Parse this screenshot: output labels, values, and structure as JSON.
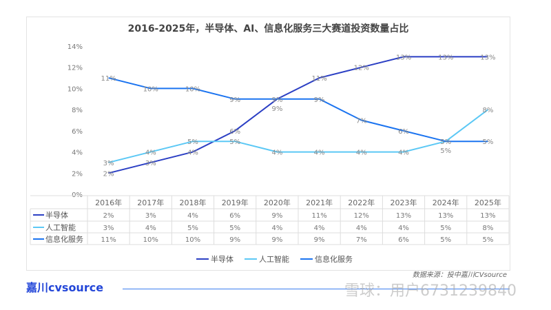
{
  "chart_data": {
    "type": "line",
    "title": "2016-2025年，半导体、AI、信息化服务三大赛道投资数量占比",
    "categories": [
      "2016年",
      "2017年",
      "2018年",
      "2019年",
      "2020年",
      "2021年",
      "2022年",
      "2023年",
      "2024年",
      "2025年"
    ],
    "yticks": [
      "0%",
      "2%",
      "4%",
      "6%",
      "8%",
      "10%",
      "12%",
      "14%"
    ],
    "ylim": [
      0,
      14
    ],
    "grid": false,
    "legend": "bottom",
    "series": [
      {
        "name": "半导体",
        "color": "#2b3fc4",
        "values": [
          2,
          3,
          4,
          6,
          9,
          11,
          12,
          13,
          13,
          13
        ]
      },
      {
        "name": "人工智能",
        "color": "#5bc8f5",
        "values": [
          3,
          4,
          5,
          5,
          4,
          4,
          4,
          4,
          5,
          8
        ]
      },
      {
        "name": "信息化服务",
        "color": "#1a73f0",
        "values": [
          11,
          10,
          10,
          9,
          9,
          9,
          7,
          6,
          5,
          5
        ]
      }
    ]
  },
  "source": "数据来源：投中嘉川CVsource",
  "logo": "嘉川cvsource",
  "watermark": "雪球：用户6731239840"
}
